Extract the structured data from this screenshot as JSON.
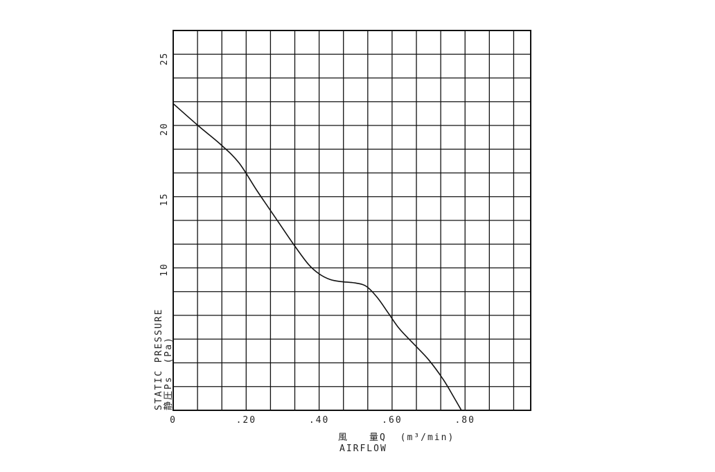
{
  "chart_data": {
    "type": "line",
    "title": "",
    "xlabel": {
      "jp": "風　　量Q",
      "unit": "(m³/min)",
      "en": "AIRFLOW"
    },
    "ylabel": {
      "en": "STATIC PRESSURE",
      "jp": "静圧Ps",
      "unit": "(Pa)"
    },
    "xlim": [
      0,
      0.98
    ],
    "ylim": [
      0,
      27
    ],
    "x_ticks": [
      {
        "value": 0,
        "label": "0"
      },
      {
        "value": 0.2,
        "label": ".20"
      },
      {
        "value": 0.4,
        "label": ".40"
      },
      {
        "value": 0.6,
        "label": ".60"
      },
      {
        "value": 0.8,
        "label": ".80"
      }
    ],
    "y_ticks": [
      {
        "value": 10,
        "label": "10"
      },
      {
        "value": 15,
        "label": "15"
      },
      {
        "value": 20,
        "label": "20"
      },
      {
        "value": 25,
        "label": "25"
      }
    ],
    "grid": true,
    "grid_step_x": 0.066667,
    "grid_step_y": 1.6875,
    "series": [
      {
        "name": "",
        "color": "#111111",
        "points": [
          [
            0.0,
            21.8
          ],
          [
            0.07,
            20.2
          ],
          [
            0.13,
            18.9
          ],
          [
            0.18,
            17.6
          ],
          [
            0.23,
            15.6
          ],
          [
            0.28,
            13.7
          ],
          [
            0.33,
            11.8
          ],
          [
            0.37,
            10.4
          ],
          [
            0.4,
            9.7
          ],
          [
            0.43,
            9.3
          ],
          [
            0.46,
            9.15
          ],
          [
            0.5,
            9.05
          ],
          [
            0.53,
            8.8
          ],
          [
            0.56,
            8.0
          ],
          [
            0.59,
            6.9
          ],
          [
            0.62,
            5.8
          ],
          [
            0.66,
            4.7
          ],
          [
            0.7,
            3.6
          ],
          [
            0.74,
            2.2
          ],
          [
            0.77,
            0.9
          ],
          [
            0.79,
            0.0
          ]
        ]
      }
    ]
  }
}
